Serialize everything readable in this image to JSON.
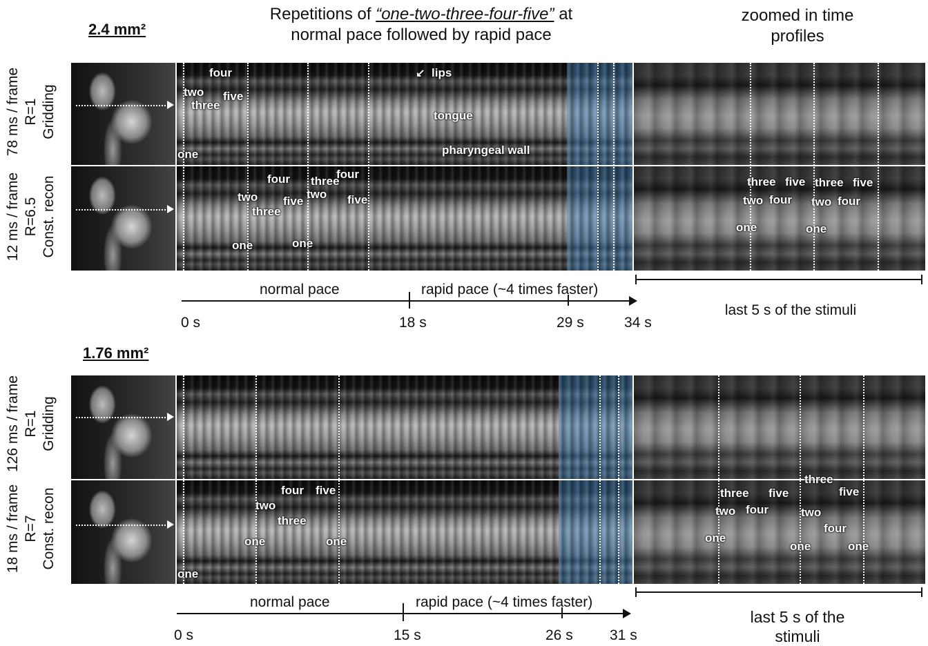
{
  "header": {
    "title_prefix": "Repetitions of ",
    "title_phrase": "“one-two-three-four-five”",
    "title_suffix": " at",
    "title_line2": "normal pace followed by rapid pace",
    "zoom_title_line1": "zoomed in time",
    "zoom_title_line2": "profiles"
  },
  "top": {
    "resolution": "2.4 mm²",
    "row1_label": "78 ms / frame\nR=1\nGridding",
    "row2_label": "12 ms / frame\nR=6.5\nConst. recon",
    "row1_words": {
      "four": "four",
      "two": "two",
      "three": "three",
      "five": "five",
      "one": "one",
      "lips": "lips",
      "tongue": "tongue",
      "pharyngeal_wall": "pharyngeal wall"
    },
    "row2_words": [
      "four",
      "three",
      "four",
      "two",
      "two",
      "five",
      "five",
      "three",
      "one",
      "one"
    ],
    "zoom2_words": [
      "three",
      "five",
      "three",
      "five",
      "two",
      "four",
      "two",
      "four",
      "one",
      "one"
    ],
    "axis": {
      "normal_label": "normal pace",
      "rapid_label": "rapid pace (~4 times faster)",
      "ticks": [
        "0 s",
        "18 s",
        "29 s",
        "34 s"
      ],
      "zoom_caption": "last 5 s of the stimuli"
    }
  },
  "bottom": {
    "resolution": "1.76 mm²",
    "row1_label": "126 ms / frame\nR=1\nGridding",
    "row2_label": "18 ms / frame\nR=7\nConst. recon",
    "row2_words": [
      "four",
      "five",
      "two",
      "three",
      "one",
      "one",
      "one"
    ],
    "zoom2_words": [
      "three",
      "three",
      "five",
      "five",
      "two",
      "four",
      "two",
      "four",
      "one",
      "one",
      "one"
    ],
    "axis": {
      "normal_label": "normal pace",
      "rapid_label": "rapid pace (~4 times faster)",
      "ticks": [
        "0 s",
        "15 s",
        "26 s",
        "31 s"
      ],
      "zoom_caption_line1": "last 5 s of the",
      "zoom_caption_line2": "stimuli"
    }
  }
}
